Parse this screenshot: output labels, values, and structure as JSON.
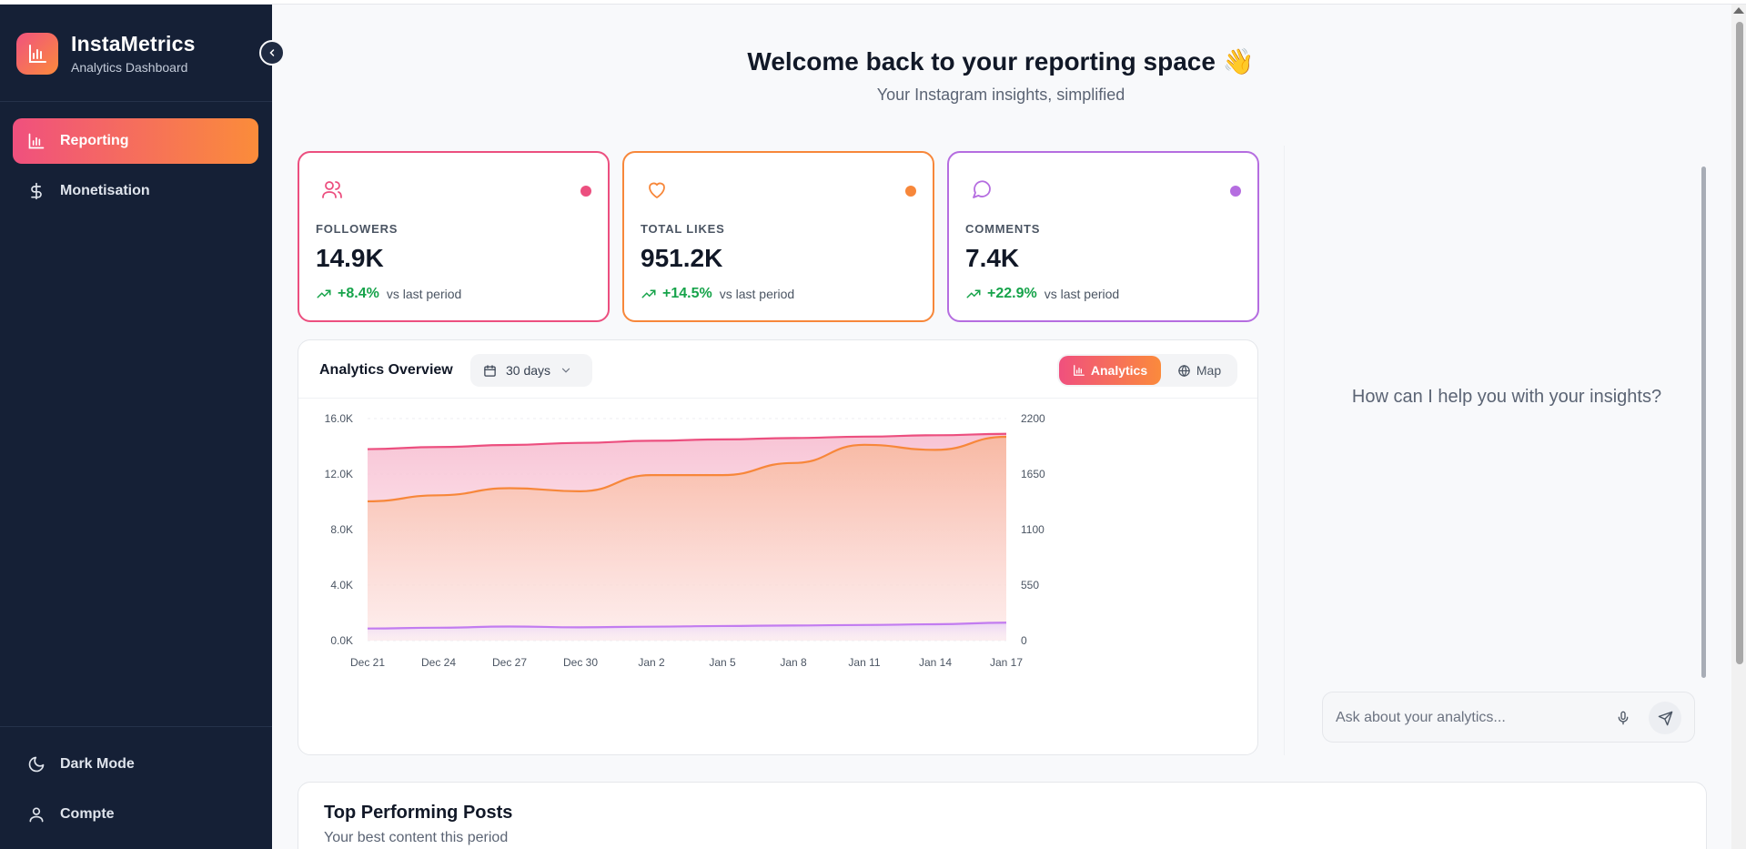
{
  "brand": {
    "title": "InstaMetrics",
    "subtitle": "Analytics Dashboard"
  },
  "sidebar": {
    "items": [
      {
        "label": "Reporting",
        "icon": "bar-chart-icon",
        "active": true
      },
      {
        "label": "Monetisation",
        "icon": "dollar-icon",
        "active": false
      }
    ],
    "footer": [
      {
        "label": "Dark Mode",
        "icon": "moon-icon"
      },
      {
        "label": "Compte",
        "icon": "user-icon"
      }
    ]
  },
  "header": {
    "title": "Welcome back to your reporting space 👋",
    "subtitle": "Your Instagram insights, simplified"
  },
  "stats": [
    {
      "label": "FOLLOWERS",
      "value": "14.9K",
      "change": "+8.4%",
      "note": "vs last period",
      "icon": "users-icon",
      "color": "#ec4f7f"
    },
    {
      "label": "TOTAL LIKES",
      "value": "951.2K",
      "change": "+14.5%",
      "note": "vs last period",
      "icon": "heart-icon",
      "color": "#f7873a"
    },
    {
      "label": "COMMENTS",
      "value": "7.4K",
      "change": "+22.9%",
      "note": "vs last period",
      "icon": "message-icon",
      "color": "#b56de0"
    }
  ],
  "analytics": {
    "title": "Analytics Overview",
    "range": "30 days",
    "tabs": [
      {
        "label": "Analytics",
        "active": true
      },
      {
        "label": "Map",
        "active": false
      }
    ]
  },
  "chart_data": {
    "type": "area",
    "x": [
      "Dec 21",
      "Dec 24",
      "Dec 27",
      "Dec 30",
      "Jan 2",
      "Jan 5",
      "Jan 8",
      "Jan 11",
      "Jan 14",
      "Jan 17"
    ],
    "left_ticks": [
      "16.0K",
      "12.0K",
      "8.0K",
      "4.0K",
      "0.0K"
    ],
    "right_ticks": [
      "2200",
      "1650",
      "1100",
      "550",
      "0"
    ],
    "ylim_left": [
      0,
      16000
    ],
    "ylim_right": [
      0,
      2200
    ],
    "grid": true,
    "series": [
      {
        "axis": "left",
        "color": "#ec4f7f",
        "values": [
          13800,
          13950,
          14100,
          14250,
          14400,
          14500,
          14600,
          14700,
          14800,
          14900
        ]
      },
      {
        "axis": "right",
        "color": "#f7873a",
        "values": [
          1380,
          1440,
          1510,
          1480,
          1640,
          1640,
          1760,
          1940,
          1890,
          2020
        ]
      },
      {
        "axis": "right",
        "color": "#c27cf0",
        "values": [
          120,
          128,
          140,
          132,
          138,
          145,
          150,
          155,
          162,
          178
        ]
      }
    ]
  },
  "assistant": {
    "prompt": "How can I help you with your insights?",
    "placeholder": "Ask about your analytics..."
  },
  "posts": {
    "title": "Top Performing Posts",
    "subtitle": "Your best content this period"
  }
}
